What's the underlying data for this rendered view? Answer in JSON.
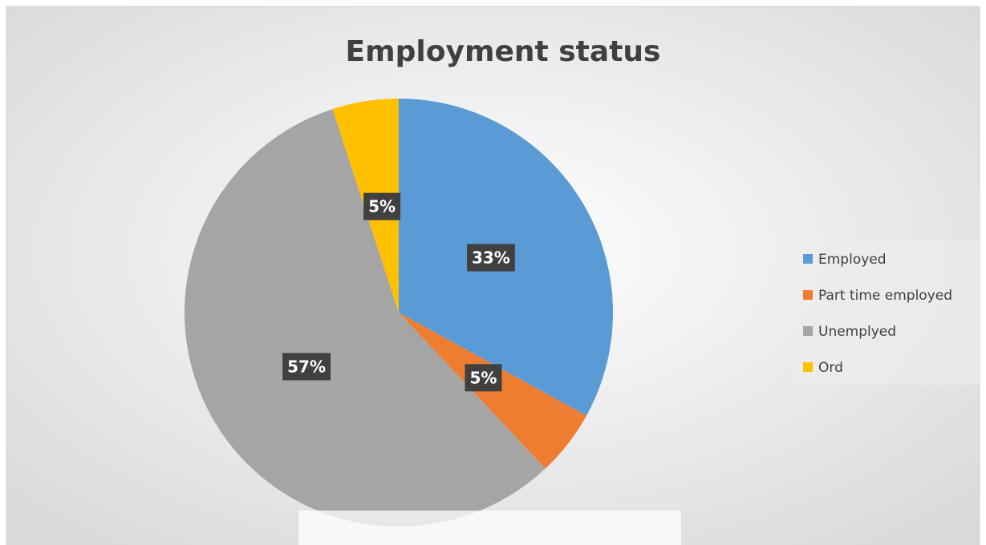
{
  "chart_data": {
    "type": "pie",
    "title": "Employment status",
    "categories": [
      "Employed",
      "Part time employed",
      "Unemplyed",
      "Ord"
    ],
    "values": [
      33,
      5,
      57,
      5
    ],
    "value_labels": [
      "33%",
      "5%",
      "57%",
      "5%"
    ],
    "colors": [
      "#5b9bd5",
      "#ed7d31",
      "#a5a5a5",
      "#ffc000"
    ],
    "legend": "right"
  }
}
